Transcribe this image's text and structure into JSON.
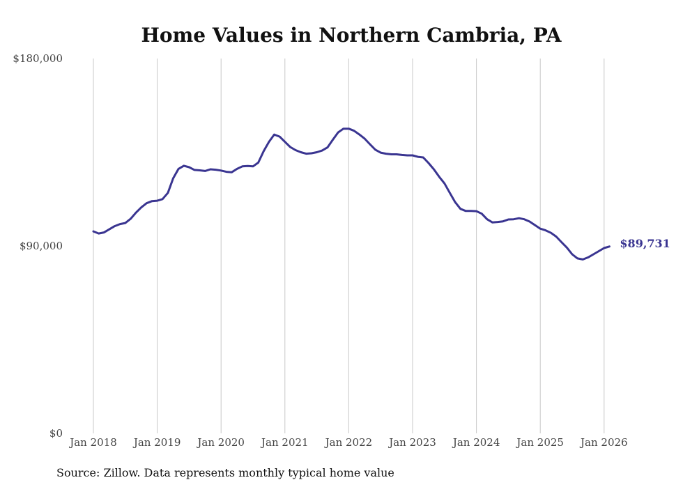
{
  "chart_data": {
    "type": "line",
    "title": "Home Values in Northern Cambria, PA",
    "xlabel": "",
    "ylabel": "",
    "ylim": [
      0,
      180000
    ],
    "yticks": [
      {
        "value": 0,
        "label": "$0"
      },
      {
        "value": 90000,
        "label": "$90,000"
      },
      {
        "value": 180000,
        "label": "$180,000"
      }
    ],
    "xticks": [
      {
        "value": "2018-01",
        "label": "Jan 2018"
      },
      {
        "value": "2019-01",
        "label": "Jan 2019"
      },
      {
        "value": "2020-01",
        "label": "Jan 2020"
      },
      {
        "value": "2021-01",
        "label": "Jan 2021"
      },
      {
        "value": "2022-01",
        "label": "Jan 2022"
      },
      {
        "value": "2023-01",
        "label": "Jan 2023"
      },
      {
        "value": "2024-01",
        "label": "Jan 2024"
      },
      {
        "value": "2025-01",
        "label": "Jan 2025"
      },
      {
        "value": "2026-01",
        "label": "Jan 2026"
      }
    ],
    "grid": "vertical",
    "series": [
      {
        "color": "#3a3591",
        "points": [
          [
            "2018-01",
            97000
          ],
          [
            "2018-02",
            96000
          ],
          [
            "2018-03",
            96500
          ],
          [
            "2018-04",
            98000
          ],
          [
            "2018-05",
            99500
          ],
          [
            "2018-06",
            100500
          ],
          [
            "2018-07",
            101000
          ],
          [
            "2018-08",
            103000
          ],
          [
            "2018-09",
            106000
          ],
          [
            "2018-10",
            108500
          ],
          [
            "2018-11",
            110500
          ],
          [
            "2018-12",
            111500
          ],
          [
            "2019-01",
            111700
          ],
          [
            "2019-02",
            112500
          ],
          [
            "2019-03",
            115500
          ],
          [
            "2019-04",
            122500
          ],
          [
            "2019-05",
            127000
          ],
          [
            "2019-06",
            128500
          ],
          [
            "2019-07",
            127800
          ],
          [
            "2019-08",
            126500
          ],
          [
            "2019-09",
            126300
          ],
          [
            "2019-10",
            126000
          ],
          [
            "2019-11",
            126800
          ],
          [
            "2019-12",
            126600
          ],
          [
            "2020-01",
            126200
          ],
          [
            "2020-02",
            125600
          ],
          [
            "2020-03",
            125400
          ],
          [
            "2020-04",
            127000
          ],
          [
            "2020-05",
            128200
          ],
          [
            "2020-06",
            128400
          ],
          [
            "2020-07",
            128200
          ],
          [
            "2020-08",
            130000
          ],
          [
            "2020-09",
            135500
          ],
          [
            "2020-10",
            140000
          ],
          [
            "2020-11",
            143500
          ],
          [
            "2020-12",
            142500
          ],
          [
            "2021-01",
            140000
          ],
          [
            "2021-02",
            137500
          ],
          [
            "2021-03",
            136000
          ],
          [
            "2021-04",
            135000
          ],
          [
            "2021-05",
            134300
          ],
          [
            "2021-06",
            134500
          ],
          [
            "2021-07",
            135000
          ],
          [
            "2021-08",
            135800
          ],
          [
            "2021-09",
            137300
          ],
          [
            "2021-10",
            141000
          ],
          [
            "2021-11",
            144500
          ],
          [
            "2021-12",
            146300
          ],
          [
            "2022-01",
            146300
          ],
          [
            "2022-02",
            145300
          ],
          [
            "2022-03",
            143500
          ],
          [
            "2022-04",
            141500
          ],
          [
            "2022-05",
            138800
          ],
          [
            "2022-06",
            136200
          ],
          [
            "2022-07",
            134800
          ],
          [
            "2022-08",
            134300
          ],
          [
            "2022-09",
            134000
          ],
          [
            "2022-10",
            134000
          ],
          [
            "2022-11",
            133700
          ],
          [
            "2022-12",
            133500
          ],
          [
            "2023-01",
            133500
          ],
          [
            "2023-02",
            132800
          ],
          [
            "2023-03",
            132500
          ],
          [
            "2023-04",
            129800
          ],
          [
            "2023-05",
            126800
          ],
          [
            "2023-06",
            123200
          ],
          [
            "2023-07",
            120000
          ],
          [
            "2023-08",
            115500
          ],
          [
            "2023-09",
            111000
          ],
          [
            "2023-10",
            107800
          ],
          [
            "2023-11",
            106800
          ],
          [
            "2023-12",
            106800
          ],
          [
            "2024-01",
            106700
          ],
          [
            "2024-02",
            105500
          ],
          [
            "2024-03",
            102800
          ],
          [
            "2024-04",
            101300
          ],
          [
            "2024-05",
            101500
          ],
          [
            "2024-06",
            101800
          ],
          [
            "2024-07",
            102700
          ],
          [
            "2024-08",
            102800
          ],
          [
            "2024-09",
            103300
          ],
          [
            "2024-10",
            102800
          ],
          [
            "2024-11",
            101700
          ],
          [
            "2024-12",
            100000
          ],
          [
            "2025-01",
            98300
          ],
          [
            "2025-02",
            97500
          ],
          [
            "2025-03",
            96300
          ],
          [
            "2025-04",
            94500
          ],
          [
            "2025-05",
            91800
          ],
          [
            "2025-06",
            89200
          ],
          [
            "2025-07",
            86000
          ],
          [
            "2025-08",
            84000
          ],
          [
            "2025-09",
            83500
          ],
          [
            "2025-10",
            84500
          ],
          [
            "2025-11",
            86000
          ],
          [
            "2025-12",
            87500
          ],
          [
            "2026-01",
            89000
          ],
          [
            "2026-02",
            89731
          ]
        ]
      }
    ],
    "end_label": "$89,731"
  },
  "footer": {
    "source": "Source: Zillow. Data represents monthly typical home value"
  }
}
